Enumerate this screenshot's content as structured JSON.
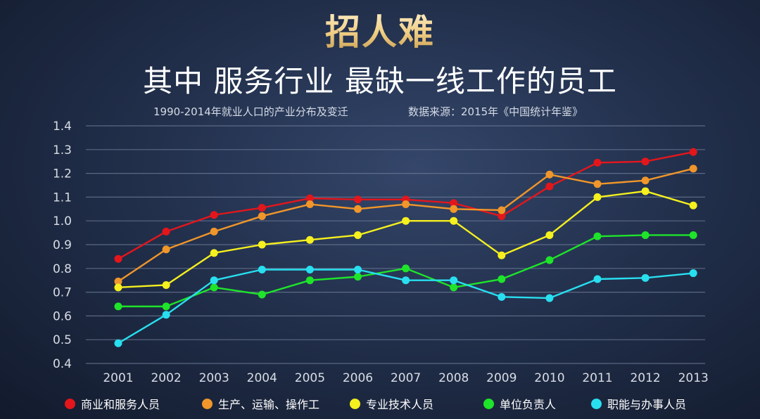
{
  "header": {
    "title": "招人难",
    "subtitle": "其中 服务行业 最缺一线工作的员工"
  },
  "caption": "1990-2014年就业人口的产业分布及变迁",
  "source": "数据来源：2015年《中国统计年鉴》",
  "chart_data": {
    "type": "line",
    "x": [
      "2001",
      "2002",
      "2003",
      "2004",
      "2005",
      "2006",
      "2007",
      "2008",
      "2009",
      "2010",
      "2011",
      "2012",
      "2013"
    ],
    "ylim": [
      0.4,
      1.4
    ],
    "yticks": [
      "0.4",
      "0.5",
      "0.6",
      "0.7",
      "0.8",
      "0.9",
      "1.0",
      "1.1",
      "1.2",
      "1.3",
      "1.4"
    ],
    "grid": true,
    "legend_position": "bottom",
    "series": [
      {
        "name": "商业和服务人员",
        "color": "#e3161c",
        "values": [
          0.84,
          0.955,
          1.025,
          1.055,
          1.095,
          1.09,
          1.09,
          1.075,
          1.02,
          1.145,
          1.245,
          1.25,
          1.29
        ]
      },
      {
        "name": "生产、运输、操作工",
        "color": "#f0962a",
        "values": [
          0.745,
          0.88,
          0.955,
          1.02,
          1.07,
          1.05,
          1.07,
          1.05,
          1.045,
          1.195,
          1.155,
          1.17,
          1.22
        ]
      },
      {
        "name": "专业技术人员",
        "color": "#f5f01e",
        "values": [
          0.72,
          0.73,
          0.865,
          0.9,
          0.92,
          0.94,
          1.0,
          1.0,
          0.855,
          0.94,
          1.1,
          1.125,
          1.065
        ]
      },
      {
        "name": "单位负责人",
        "color": "#1ee42a",
        "values": [
          0.64,
          0.64,
          0.72,
          0.69,
          0.75,
          0.765,
          0.8,
          0.72,
          0.755,
          0.835,
          0.935,
          0.94,
          0.94
        ]
      },
      {
        "name": "职能与办事人员",
        "color": "#28dff0",
        "values": [
          0.485,
          0.605,
          0.75,
          0.795,
          0.795,
          0.795,
          0.75,
          0.75,
          0.68,
          0.675,
          0.755,
          0.76,
          0.78
        ]
      }
    ]
  }
}
